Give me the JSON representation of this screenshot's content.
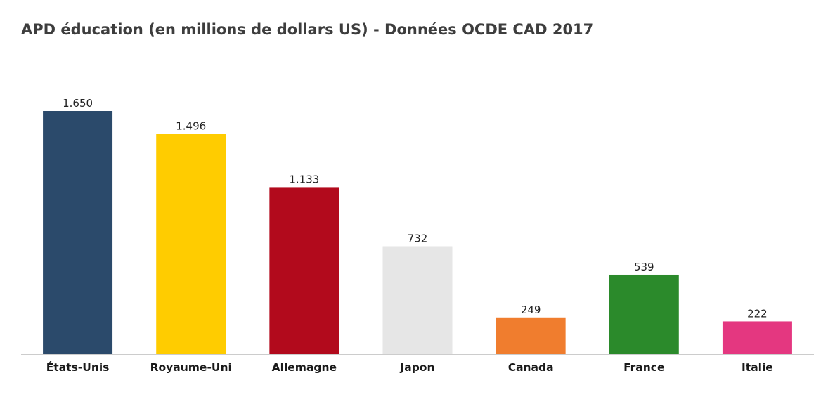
{
  "chart_data": {
    "type": "bar",
    "title": "APD éducation (en millions de dollars US) - Données OCDE CAD 2017",
    "xlabel": "",
    "ylabel": "",
    "ylim": [
      0,
      2000
    ],
    "grid": false,
    "legend": "none",
    "categories": [
      "États-Unis",
      "Royaume-Uni",
      "Allemagne",
      "Japon",
      "Canada",
      "France",
      "Italie"
    ],
    "values": [
      1650,
      1496,
      1133,
      732,
      249,
      539,
      222
    ],
    "value_labels": [
      "1.650",
      "1.496",
      "1.133",
      "732",
      "249",
      "539",
      "222"
    ],
    "colors": [
      "#2b4a6b",
      "#ffcc00",
      "#b20a1c",
      "#e6e6e6",
      "#f07d2e",
      "#2b8a2b",
      "#e43780"
    ],
    "axis_color": "#cccccc"
  }
}
